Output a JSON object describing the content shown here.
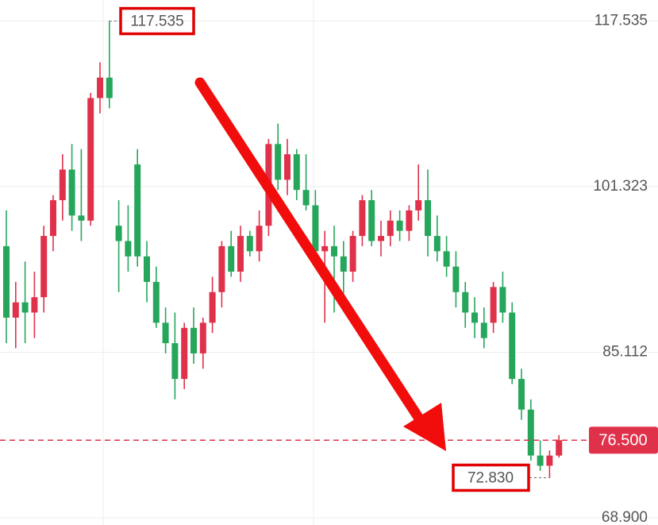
{
  "chart_data": {
    "type": "candlestick",
    "ylim": [
      68.2,
      119.6
    ],
    "yticks": [
      {
        "value": 68.9,
        "label": "68.900"
      },
      85.112,
      101.323,
      117.535
    ],
    "grid": true,
    "up_color": "#e0314b",
    "down_color": "#26a65b",
    "open": [
      95.5,
      88.5,
      90.0,
      89.0,
      90.5,
      96.5,
      100.0,
      103.0,
      98.5,
      98.0,
      110.0,
      112.0,
      97.5,
      96.0,
      103.5,
      94.5,
      92.0,
      88.0,
      86.0,
      82.5,
      87.5,
      85.0,
      88.0,
      91.0,
      95.5,
      93.0,
      96.5,
      95.0,
      97.5,
      105.5,
      102.0,
      104.5,
      101.0,
      99.5,
      95.0,
      95.5,
      94.5,
      93.0,
      96.5,
      100.0,
      96.0,
      96.5,
      98.0,
      97.0,
      99.0,
      100.0,
      96.5,
      95.0,
      93.5,
      91.0,
      89.0,
      88.0,
      88.0,
      91.5,
      89.0,
      82.5,
      79.5,
      75.0,
      74.0,
      75.0
    ],
    "high": [
      99.0,
      92.0,
      94.0,
      93.0,
      97.5,
      100.5,
      104.5,
      105.5,
      105.0,
      110.5,
      113.5,
      117.535,
      100.0,
      99.5,
      105.0,
      96.0,
      93.5,
      89.5,
      89.0,
      88.0,
      89.5,
      88.5,
      92.5,
      96.0,
      97.0,
      97.5,
      97.0,
      99.0,
      106.0,
      107.5,
      106.0,
      105.0,
      104.5,
      101.0,
      97.0,
      97.5,
      96.0,
      97.0,
      100.5,
      101.0,
      98.0,
      99.0,
      99.0,
      99.5,
      103.5,
      103.0,
      98.5,
      96.5,
      95.0,
      92.0,
      90.5,
      89.5,
      92.0,
      93.0,
      90.0,
      83.5,
      80.5,
      76.5,
      75.5,
      77.0
    ],
    "low": [
      86.0,
      85.5,
      86.0,
      86.5,
      89.0,
      95.0,
      98.0,
      97.0,
      96.0,
      97.5,
      108.5,
      109.0,
      91.0,
      93.0,
      93.5,
      90.0,
      87.5,
      85.0,
      80.5,
      81.5,
      84.0,
      83.5,
      87.0,
      89.5,
      92.5,
      92.0,
      94.5,
      94.0,
      96.5,
      101.0,
      100.5,
      100.0,
      99.0,
      94.5,
      88.0,
      89.0,
      90.5,
      92.0,
      95.5,
      95.5,
      94.5,
      95.5,
      96.0,
      96.0,
      98.0,
      94.5,
      94.0,
      92.5,
      89.5,
      87.5,
      86.5,
      85.5,
      87.0,
      88.0,
      82.0,
      78.5,
      74.5,
      73.5,
      72.83,
      74.8
    ],
    "close": [
      88.5,
      90.0,
      89.0,
      90.5,
      96.5,
      100.0,
      103.0,
      98.5,
      98.0,
      110.0,
      112.0,
      110.0,
      96.0,
      94.5,
      94.5,
      92.0,
      88.0,
      86.0,
      82.5,
      87.5,
      85.0,
      88.0,
      91.0,
      95.5,
      93.0,
      96.5,
      95.0,
      97.5,
      105.5,
      102.0,
      104.5,
      101.0,
      99.5,
      95.0,
      95.5,
      94.5,
      93.0,
      96.5,
      100.0,
      96.0,
      96.5,
      98.0,
      97.0,
      99.0,
      100.0,
      96.5,
      95.0,
      93.5,
      91.0,
      89.0,
      88.0,
      86.5,
      91.5,
      89.0,
      82.5,
      79.5,
      75.0,
      74.0,
      75.0,
      76.5
    ],
    "high_marker": {
      "value": 117.535
    },
    "low_marker": {
      "value": 72.83,
      "label": "72.830"
    },
    "last_price": {
      "value": 76.5,
      "label": "76.500"
    }
  }
}
